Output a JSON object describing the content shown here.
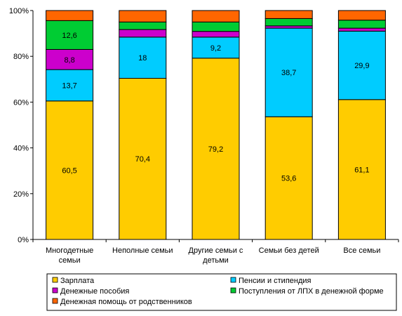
{
  "chart_data": {
    "type": "bar",
    "stacked": true,
    "orientation": "vertical",
    "categories": [
      [
        "Многодетные",
        "семьи"
      ],
      [
        "Неполные семьи"
      ],
      [
        "Другие семьи с",
        "детьми"
      ],
      [
        "Семьи без детей"
      ],
      [
        "Все семьи"
      ]
    ],
    "series": [
      {
        "name": "Зарплата",
        "color": "#ffcc00",
        "values": [
          60.5,
          70.4,
          79.2,
          53.6,
          61.1
        ],
        "labels": [
          "60,5",
          "70,4",
          "79,2",
          "53,6",
          "61,1"
        ]
      },
      {
        "name": "Пенсии и стипендия",
        "color": "#00ccff",
        "values": [
          13.7,
          18.0,
          9.2,
          38.7,
          29.9
        ],
        "labels": [
          "13,7",
          "18",
          "9,2",
          "38,7",
          "29,9"
        ]
      },
      {
        "name": "Денежные пособия",
        "color": "#cc00cc",
        "values": [
          8.8,
          3.3,
          2.5,
          1.0,
          1.3
        ],
        "labels": [
          "8,8",
          "",
          "",
          "",
          ""
        ]
      },
      {
        "name": "Поступления от ЛПХ в денежной форме",
        "color": "#00cc33",
        "values": [
          12.6,
          3.3,
          4.1,
          3.2,
          3.5
        ],
        "labels": [
          "12,6",
          "",
          "",
          "",
          ""
        ]
      },
      {
        "name": "Денежная помощь от родственников",
        "color": "#ff6600",
        "values": [
          4.4,
          5.0,
          5.0,
          3.5,
          4.2
        ],
        "labels": [
          "",
          "",
          "",
          "",
          ""
        ]
      }
    ],
    "ylim": [
      0,
      100
    ],
    "yticks": [
      0,
      20,
      40,
      60,
      80,
      100
    ],
    "ytick_labels": [
      "0%",
      "20%",
      "40%",
      "60%",
      "80%",
      "100%"
    ],
    "grid": false,
    "legend_position": "bottom",
    "title": "",
    "xlabel": "",
    "ylabel": ""
  }
}
